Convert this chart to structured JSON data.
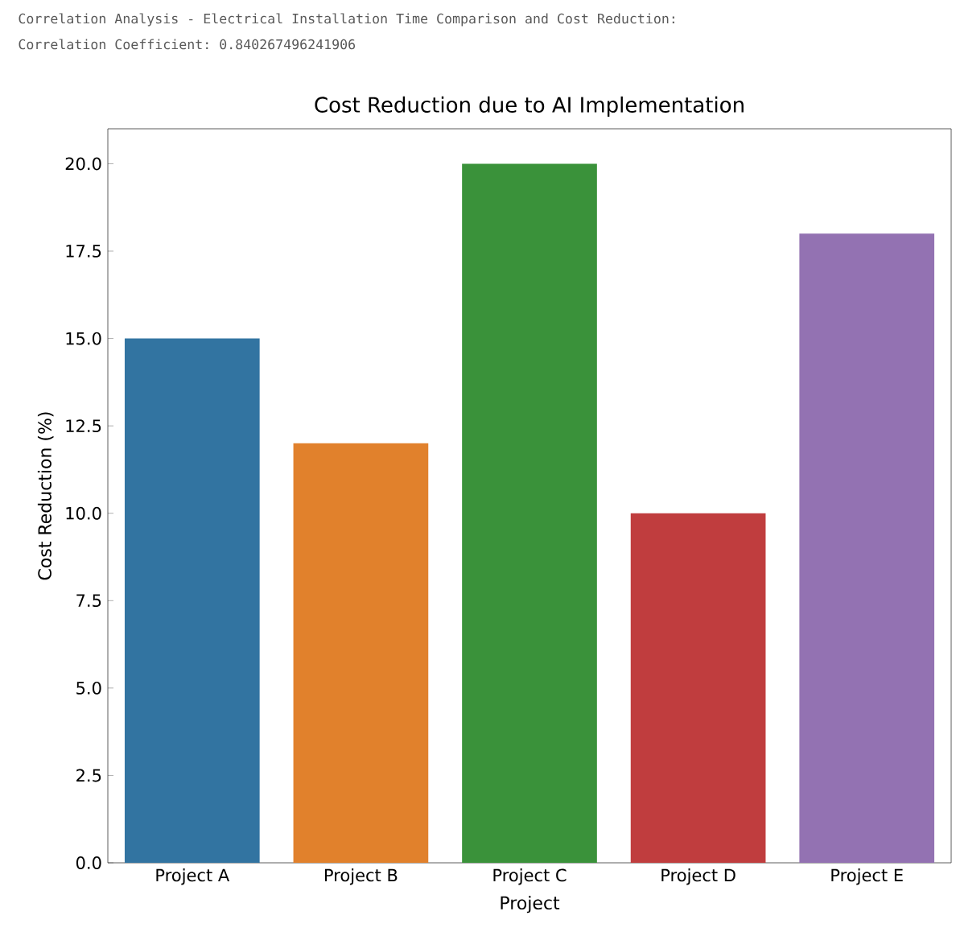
{
  "chart_data": {
    "type": "bar",
    "title": "Cost Reduction due to AI Implementation",
    "xlabel": "Project",
    "ylabel": "Cost Reduction (%)",
    "annotations": [
      "Correlation Analysis - Electrical Installation Time Comparison and Cost Reduction:",
      "Correlation Coefficient: 0.840267496241906"
    ],
    "categories": [
      "Project A",
      "Project B",
      "Project C",
      "Project D",
      "Project E"
    ],
    "values": [
      15,
      12,
      20,
      10,
      18
    ],
    "colors": [
      "#3274a1",
      "#e1812c",
      "#3a923a",
      "#c03d3e",
      "#9372b2"
    ],
    "ylim": [
      0,
      21
    ],
    "yticks": [
      {
        "value": 0,
        "label": "0.0"
      },
      {
        "value": 2.5,
        "label": "2.5"
      },
      {
        "value": 5,
        "label": "5.0"
      },
      {
        "value": 7.5,
        "label": "7.5"
      },
      {
        "value": 10,
        "label": "10.0"
      },
      {
        "value": 12.5,
        "label": "12.5"
      },
      {
        "value": 15,
        "label": "15.0"
      },
      {
        "value": 17.5,
        "label": "17.5"
      },
      {
        "value": 20,
        "label": "20.0"
      }
    ],
    "grid": false
  }
}
